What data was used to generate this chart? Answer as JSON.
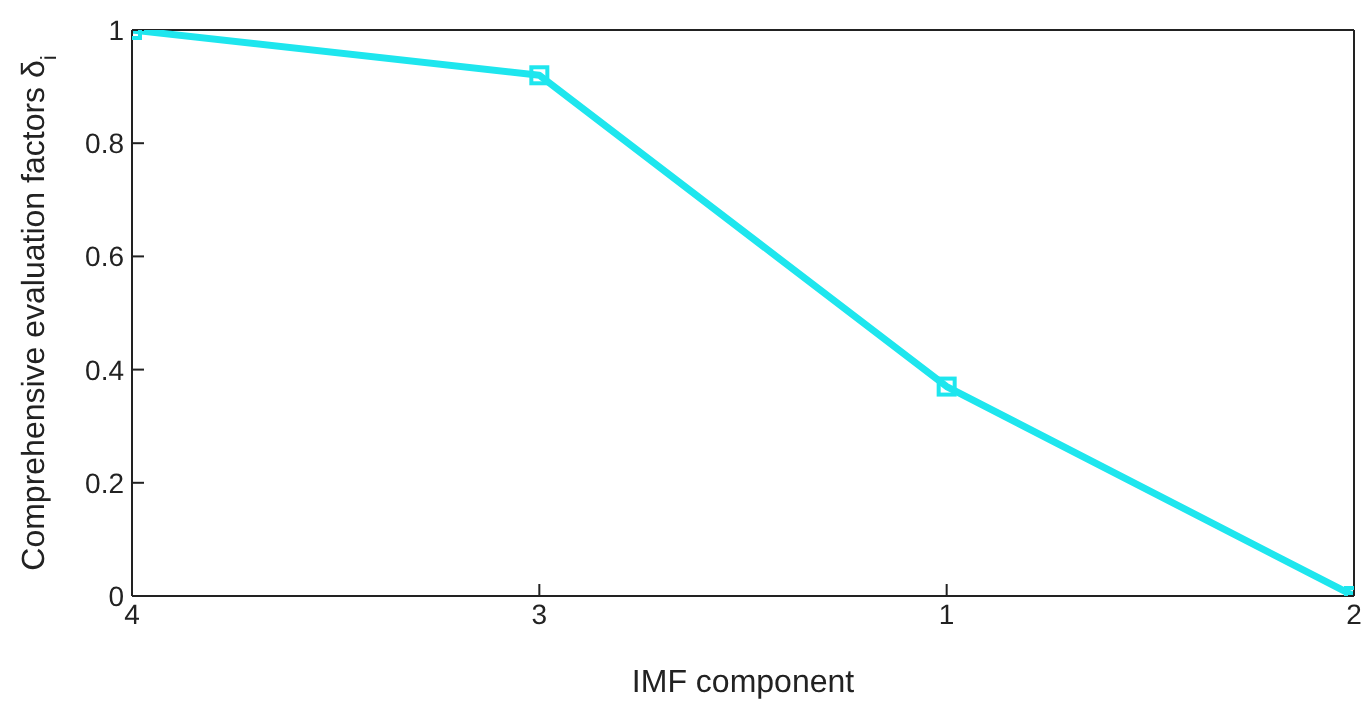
{
  "chart_data": {
    "type": "line",
    "xlabel": "IMF component",
    "ylabel": "Comprehensive evaluation factors δ$_{i}$",
    "categories": [
      "4",
      "3",
      "1",
      "2"
    ],
    "series": [
      {
        "color": "#1ee6ee",
        "values": [
          1,
          0.92,
          0.37,
          0
        ]
      }
    ],
    "ylim": [
      0,
      1
    ],
    "yticks": [
      0,
      0.2,
      0.4,
      0.6,
      0.8,
      1
    ],
    "marker": "square",
    "line_style": "solid",
    "grid": false,
    "legend": false
  }
}
